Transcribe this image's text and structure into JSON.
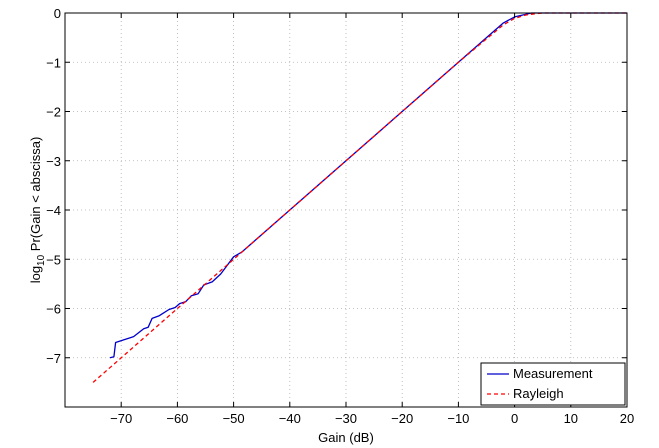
{
  "chart_data": {
    "type": "line",
    "xlabel": "Gain (dB)",
    "ylabel": {
      "prefix": "log",
      "subscript": "10",
      "suffix": " Pr(Gain < abscissa)"
    },
    "xlim": [
      -80,
      20
    ],
    "ylim": [
      -8,
      0
    ],
    "xticks": [
      -70,
      -60,
      -50,
      -40,
      -30,
      -20,
      -10,
      0,
      10,
      20
    ],
    "yticks": [
      0,
      -1,
      -2,
      -3,
      -4,
      -5,
      -6,
      -7
    ],
    "grid": true,
    "legend_position": "bottom-right",
    "series": [
      {
        "name": "Measurement",
        "style": "solid",
        "color": "#0000cc",
        "x": [
          -72,
          -71.3,
          -71,
          -67.8,
          -67,
          -66,
          -65.2,
          -64.5,
          -63.3,
          -62.6,
          -61.5,
          -60.4,
          -59.6,
          -58.5,
          -57.5,
          -56.3,
          -55.3,
          -53.8,
          -52.3,
          -50,
          -48.5,
          -45,
          -40,
          -30,
          -20,
          -10,
          -5,
          -2,
          0,
          3,
          5,
          10,
          20
        ],
        "y": [
          -7.0,
          -6.98,
          -6.69,
          -6.57,
          -6.5,
          -6.41,
          -6.38,
          -6.2,
          -6.15,
          -6.1,
          -6.02,
          -5.98,
          -5.9,
          -5.86,
          -5.74,
          -5.7,
          -5.52,
          -5.46,
          -5.3,
          -4.95,
          -4.85,
          -4.5,
          -4.0,
          -3.0,
          -2.0,
          -1.0,
          -0.5,
          -0.2,
          -0.08,
          0,
          0,
          0,
          0
        ]
      },
      {
        "name": "Rayleigh",
        "style": "dashed",
        "color": "#ff0000",
        "x": [
          -75,
          -70,
          -60,
          -50,
          -40,
          -30,
          -20,
          -10,
          -6,
          -4,
          -2,
          0,
          2,
          4,
          5,
          6,
          8,
          10,
          20
        ],
        "y": [
          -7.5,
          -7.0,
          -6.0,
          -5.0,
          -4.0,
          -3.0,
          -2.0,
          -1.0,
          -0.62,
          -0.43,
          -0.24,
          -0.11,
          -0.04,
          -0.01,
          0,
          0,
          0,
          0,
          0
        ]
      }
    ]
  }
}
